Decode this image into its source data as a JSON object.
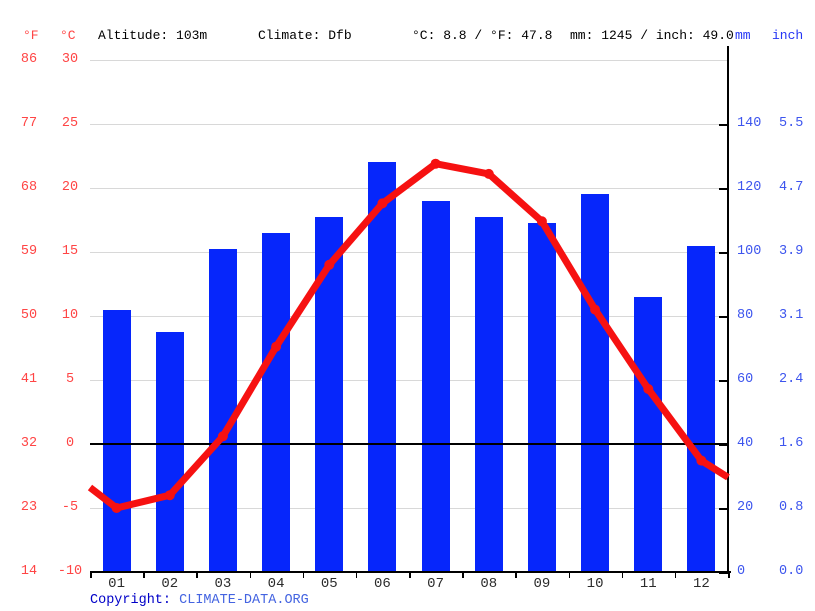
{
  "header": {
    "deg_f": "°F",
    "deg_c": "°C",
    "altitude": "Altitude: 103m",
    "climate": "Climate: Dfb",
    "avg_temp": "°C: 8.8 / °F: 47.8",
    "annual_precip": "mm: 1245 / inch: 49.0",
    "mm": "mm",
    "inch": "inch"
  },
  "footer": {
    "copyright_label": "Copyright:",
    "link_text": "CLIMATE-DATA.ORG"
  },
  "colors": {
    "bar": "#0626fb",
    "line": "#f61111",
    "left_axis_text": "#ff4545",
    "right_axis_text": "#3d55ee",
    "unit_header_blue": "#2536f5",
    "month_text": "#2b2b2b",
    "gridline": "#d8d8d8",
    "axis_line": "#000000",
    "copyright_label_color": "#0000c8",
    "link_color": "#4464e1"
  },
  "chart_data": {
    "type": "bar+line",
    "title": "",
    "categories": [
      "01",
      "02",
      "03",
      "04",
      "05",
      "06",
      "07",
      "08",
      "09",
      "10",
      "11",
      "12"
    ],
    "series": [
      {
        "name": "Precipitation",
        "type": "bar",
        "unit": "mm",
        "values": [
          82,
          75,
          101,
          106,
          111,
          128,
          116,
          111,
          109,
          118,
          86,
          102
        ]
      },
      {
        "name": "Temperature",
        "type": "line",
        "unit": "°C",
        "values": [
          -5.0,
          -4.0,
          0.6,
          7.6,
          14.0,
          18.8,
          21.9,
          21.1,
          17.4,
          10.5,
          4.3,
          -1.3
        ],
        "edge_values": [
          -3.4,
          -2.6
        ]
      }
    ],
    "temp_axis": {
      "f_ticks": [
        86,
        77,
        68,
        59,
        50,
        41,
        32,
        23,
        14
      ],
      "c_ticks": [
        30,
        25,
        20,
        15,
        10,
        5,
        0,
        -5,
        -10
      ],
      "c_range": [
        -10,
        30
      ],
      "zero_line": true
    },
    "precip_axis": {
      "mm_ticks": [
        140,
        120,
        100,
        80,
        60,
        40,
        20,
        0
      ],
      "inch_ticks": [
        "5.5",
        "4.7",
        "3.9",
        "3.1",
        "2.4",
        "1.6",
        "0.8",
        "0.0"
      ],
      "mm_range": [
        0,
        160
      ]
    },
    "grid": true,
    "legend": "none"
  }
}
